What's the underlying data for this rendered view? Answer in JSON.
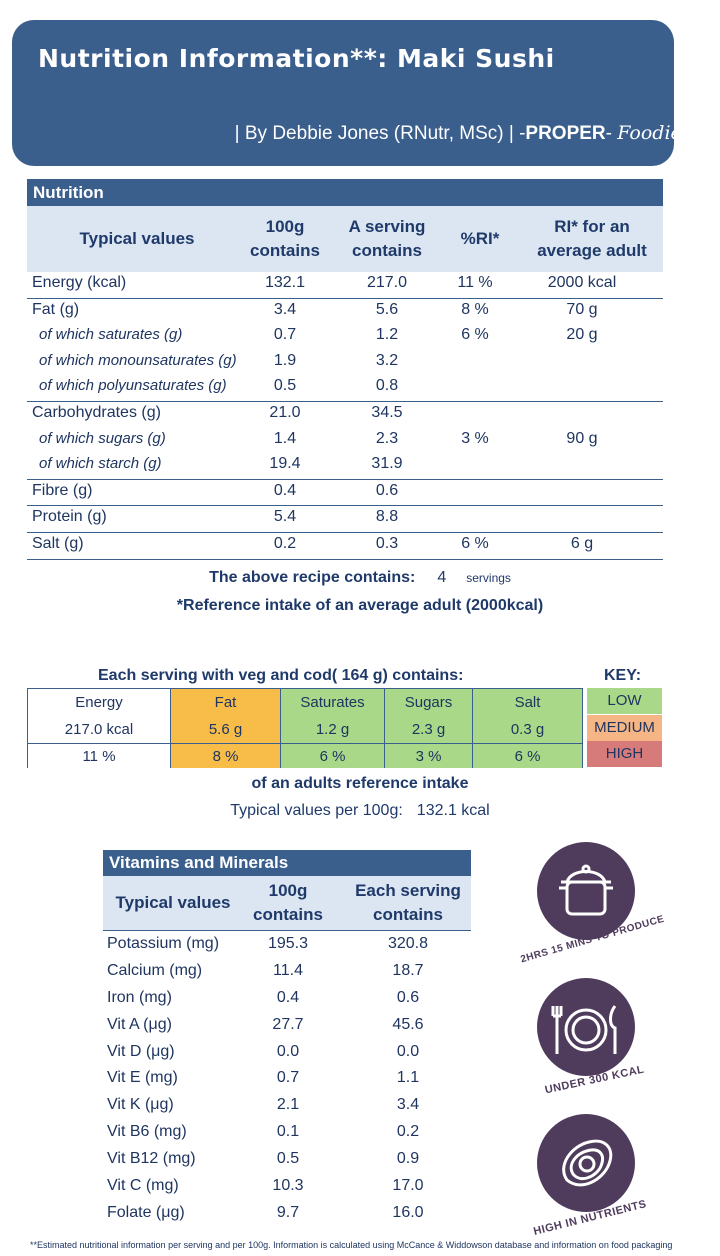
{
  "header": {
    "title": "Nutrition Information**: Maki Sushi",
    "byline_prefix": "| By Debbie Jones (RNutr, MSc) | -",
    "brand_bold": "PROPER",
    "brand_dash": "- ",
    "brand_italic": "Foodie",
    "byline_suffix": " |"
  },
  "nutrition": {
    "title": "Nutrition",
    "headers": {
      "typical": "Typical values",
      "per100_l1": "100g",
      "per100_l2": "contains",
      "serving_l1": "A serving",
      "serving_l2": "contains",
      "ri": "%RI*",
      "ri_adult_l1": "RI* for an",
      "ri_adult_l2": "average adult"
    },
    "rows": [
      {
        "label": "Energy (kcal)",
        "per100": "132.1",
        "serving": "217.0",
        "ri": "11  %",
        "ri_adult": "2000  kcal"
      },
      {
        "label": "Fat (g)",
        "per100": "3.4",
        "serving": "5.6",
        "ri": "8  %",
        "ri_adult": "70  g"
      },
      {
        "label": "of which saturates (g)",
        "per100": "0.7",
        "serving": "1.2",
        "ri": "6  %",
        "ri_adult": "20  g"
      },
      {
        "label": "of which monounsaturates (g)",
        "per100": "1.9",
        "serving": "3.2",
        "ri": "",
        "ri_adult": ""
      },
      {
        "label": "of which polyunsaturates (g)",
        "per100": "0.5",
        "serving": "0.8",
        "ri": "",
        "ri_adult": ""
      },
      {
        "label": "Carbohydrates (g)",
        "per100": "21.0",
        "serving": "34.5",
        "ri": "",
        "ri_adult": ""
      },
      {
        "label": "of which sugars (g)",
        "per100": "1.4",
        "serving": "2.3",
        "ri": "3  %",
        "ri_adult": "90  g"
      },
      {
        "label": "of which starch (g)",
        "per100": "19.4",
        "serving": "31.9",
        "ri": "",
        "ri_adult": ""
      },
      {
        "label": "Fibre (g)",
        "per100": "0.4",
        "serving": "0.6",
        "ri": "",
        "ri_adult": ""
      },
      {
        "label": "Protein (g)",
        "per100": "5.4",
        "serving": "8.8",
        "ri": "",
        "ri_adult": ""
      },
      {
        "label": "Salt (g)",
        "per100": "0.2",
        "serving": "0.3",
        "ri": "6  %",
        "ri_adult": "6  g"
      }
    ],
    "servings_text": "The above recipe contains:",
    "servings_count": "4",
    "servings_unit": "servings",
    "ri_note": "*Reference intake of an average adult (2000kcal)"
  },
  "traffic": {
    "title": "Each serving with veg and cod(   164  g) contains:",
    "key_title": "KEY:",
    "columns": [
      {
        "name": "Energy",
        "amount": "217.0  kcal",
        "pct": "11  %",
        "color": "#ffffff"
      },
      {
        "name": "Fat",
        "amount": "5.6  g",
        "pct": "8  %",
        "color": "#f7bd48"
      },
      {
        "name": "Saturates",
        "amount": "1.2  g",
        "pct": "6  %",
        "color": "#a8d888"
      },
      {
        "name": "Sugars",
        "amount": "2.3  g",
        "pct": "3  %",
        "color": "#a8d888"
      },
      {
        "name": "Salt",
        "amount": "0.3  g",
        "pct": "6  %",
        "color": "#a8d888"
      }
    ],
    "key": [
      {
        "label": "LOW",
        "color": "#a8d888"
      },
      {
        "label": "MEDIUM",
        "color": "#f5b585"
      },
      {
        "label": "HIGH",
        "color": "#d77a7a"
      }
    ],
    "foot1": "of an adults reference intake",
    "foot2_label": "Typical values per 100g:",
    "foot2_value": "132.1  kcal"
  },
  "vitamins": {
    "title": "Vitamins and Minerals",
    "headers": {
      "typical": "Typical values",
      "per100_l1": "100g",
      "per100_l2": "contains",
      "serving_l1": "Each serving",
      "serving_l2": "contains"
    },
    "rows": [
      {
        "label": "Potassium (mg)",
        "per100": "195.3",
        "serving": "320.8"
      },
      {
        "label": "Calcium (mg)",
        "per100": "11.4",
        "serving": "18.7"
      },
      {
        "label": "Iron (mg)",
        "per100": "0.4",
        "serving": "0.6"
      },
      {
        "label": "Vit A (μg)",
        "per100": "27.7",
        "serving": "45.6"
      },
      {
        "label": "Vit D (μg)",
        "per100": "0.0",
        "serving": "0.0"
      },
      {
        "label": "Vit E (mg)",
        "per100": "0.7",
        "serving": "1.1"
      },
      {
        "label": "Vit K (μg)",
        "per100": "2.1",
        "serving": "3.4"
      },
      {
        "label": "Vit B6 (mg)",
        "per100": "0.1",
        "serving": "0.2"
      },
      {
        "label": "Vit B12 (mg)",
        "per100": "0.5",
        "serving": "0.9"
      },
      {
        "label": "Vit C (mg)",
        "per100": "10.3",
        "serving": "17.0"
      },
      {
        "label": "Folate (μg)",
        "per100": "9.7",
        "serving": "16.0"
      }
    ]
  },
  "badges": {
    "time": "2HRS 15 MINS TO PRODUCE",
    "kcal": "UNDER 300 KCAL",
    "nutrients": "HIGH IN NUTRIENTS"
  },
  "footnote": "**Estimated nutritional information per serving and per 100g. Information is calculated using McCance & Widdowson database and information on food packaging"
}
